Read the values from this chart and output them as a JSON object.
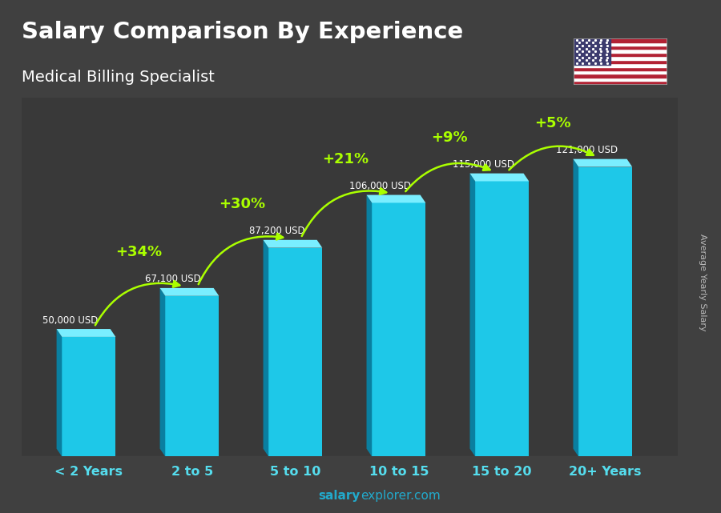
{
  "title": "Salary Comparison By Experience",
  "subtitle": "Medical Billing Specialist",
  "categories": [
    "< 2 Years",
    "2 to 5",
    "5 to 10",
    "10 to 15",
    "15 to 20",
    "20+ Years"
  ],
  "values": [
    50000,
    67100,
    87200,
    106000,
    115000,
    121000
  ],
  "value_labels": [
    "50,000 USD",
    "67,100 USD",
    "87,200 USD",
    "106,000 USD",
    "115,000 USD",
    "121,000 USD"
  ],
  "pct_changes": [
    "+34%",
    "+30%",
    "+21%",
    "+9%",
    "+5%"
  ],
  "bar_color_face": "#1EC8E8",
  "bar_color_left": "#0A7FA0",
  "bar_color_top": "#7AEEFF",
  "bg_color": "#3a3a3a",
  "title_color": "#ffffff",
  "subtitle_color": "#ffffff",
  "label_color": "#ffffff",
  "xticklabel_color": "#55DDEE",
  "pct_color": "#AAFF00",
  "ylabel": "Average Yearly Salary",
  "footer_salary": "salary",
  "footer_rest": "explorer.com",
  "ylim_max": 150000
}
